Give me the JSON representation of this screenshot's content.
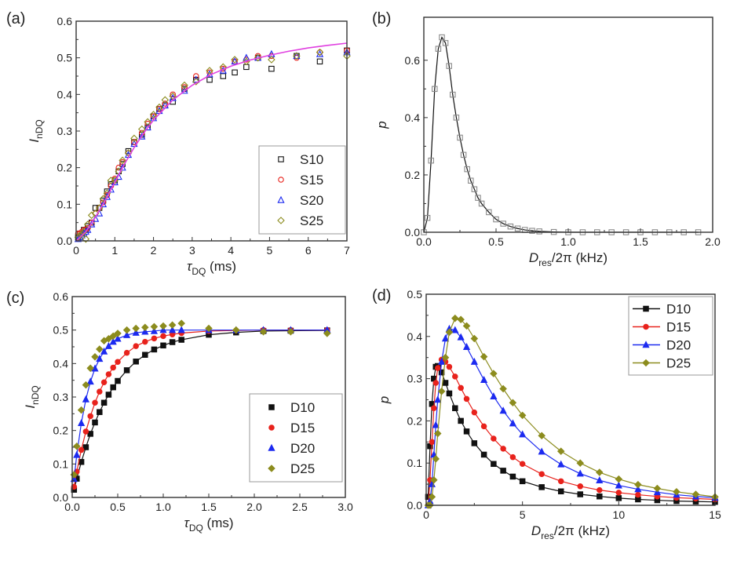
{
  "colors": {
    "black": "#111111",
    "red": "#e8221c",
    "blue": "#1c2af0",
    "olive": "#8c8c1e",
    "magenta": "#e040e0",
    "gray": "#8a8a8a"
  },
  "chart_data": [
    {
      "panel": "(a)",
      "type": "scatter",
      "xlabel": {
        "main": "τ",
        "sub": "DQ",
        "rest": " (ms)"
      },
      "ylabel": {
        "main": "I",
        "sub": "nDQ"
      },
      "xlim": [
        0,
        7
      ],
      "ylim": [
        0,
        0.6
      ],
      "xticks": [
        0,
        1,
        2,
        3,
        4,
        5,
        6,
        7
      ],
      "xtick_labels": [
        "0",
        "1",
        "2",
        "3",
        "4",
        "5",
        "6",
        "7"
      ],
      "yticks": [
        0,
        0.1,
        0.2,
        0.3,
        0.4,
        0.5,
        0.6
      ],
      "ytick_labels": [
        "0.0",
        "0.1",
        "0.2",
        "0.3",
        "0.4",
        "0.5",
        "0.6"
      ],
      "legend": "bottom-right",
      "grid": false,
      "x": [
        0.05,
        0.1,
        0.15,
        0.2,
        0.25,
        0.3,
        0.4,
        0.5,
        0.6,
        0.7,
        0.8,
        0.9,
        1.0,
        1.1,
        1.2,
        1.35,
        1.5,
        1.7,
        1.85,
        2.0,
        2.15,
        2.3,
        2.5,
        2.8,
        3.1,
        3.45,
        3.8,
        4.1,
        4.4,
        4.7,
        5.05,
        5.7,
        6.3,
        7.0
      ],
      "series": [
        {
          "name": "S10",
          "color": "black",
          "marker": "square",
          "filled": false,
          "line": false,
          "values": [
            0.01,
            0.02,
            0.02,
            0.03,
            0.03,
            0.04,
            0.05,
            0.09,
            0.09,
            0.11,
            0.135,
            0.155,
            0.165,
            0.19,
            0.21,
            0.245,
            0.27,
            0.29,
            0.31,
            0.34,
            0.36,
            0.37,
            0.38,
            0.415,
            0.44,
            0.44,
            0.45,
            0.46,
            0.475,
            0.5,
            0.47,
            0.505,
            0.49,
            0.52
          ]
        },
        {
          "name": "S15",
          "color": "red",
          "marker": "circle",
          "filled": false,
          "line": false,
          "values": [
            0.02,
            0.02,
            0.025,
            0.03,
            0.03,
            0.035,
            0.05,
            0.075,
            0.09,
            0.105,
            0.125,
            0.15,
            0.17,
            0.2,
            0.215,
            0.24,
            0.27,
            0.295,
            0.32,
            0.34,
            0.36,
            0.375,
            0.4,
            0.42,
            0.45,
            0.46,
            0.47,
            0.49,
            0.495,
            0.505,
            0.505,
            0.5,
            0.515,
            0.52
          ]
        },
        {
          "name": "S20",
          "color": "blue",
          "marker": "triangle",
          "filled": false,
          "line": false,
          "values": [
            0.005,
            0.01,
            0.015,
            0.02,
            0.025,
            0.03,
            0.045,
            0.06,
            0.075,
            0.1,
            0.12,
            0.14,
            0.16,
            0.175,
            0.2,
            0.235,
            0.265,
            0.285,
            0.31,
            0.335,
            0.355,
            0.37,
            0.39,
            0.41,
            0.44,
            0.455,
            0.465,
            0.49,
            0.5,
            0.5,
            0.51,
            0.505,
            0.51,
            0.515
          ]
        },
        {
          "name": "S25",
          "color": "olive",
          "marker": "diamond",
          "filled": false,
          "line": false,
          "values": [
            0.01,
            0.015,
            0.02,
            0.025,
            0.005,
            0.045,
            0.07,
            0.075,
            0.09,
            0.115,
            0.13,
            0.165,
            0.165,
            0.19,
            0.22,
            0.24,
            0.28,
            0.305,
            0.325,
            0.345,
            0.365,
            0.385,
            0.395,
            0.425,
            0.435,
            0.465,
            0.475,
            0.495,
            0.49,
            0.5,
            0.495,
            0.505,
            0.515,
            0.505
          ]
        },
        {
          "name": "",
          "color": "magenta",
          "marker": "none",
          "line": true,
          "legend": false,
          "x": [
            0,
            0.25,
            0.5,
            0.75,
            1,
            1.25,
            1.5,
            1.75,
            2,
            2.5,
            3,
            3.5,
            4,
            4.5,
            5,
            5.5,
            6,
            6.5,
            7
          ],
          "values": [
            0,
            0.025,
            0.065,
            0.11,
            0.16,
            0.21,
            0.255,
            0.295,
            0.33,
            0.385,
            0.425,
            0.455,
            0.477,
            0.494,
            0.507,
            0.518,
            0.527,
            0.534,
            0.54
          ]
        }
      ]
    },
    {
      "panel": "(b)",
      "type": "line",
      "xlabel": {
        "main": "D",
        "sub": "res",
        "rest": "/2π (kHz)"
      },
      "ylabel": {
        "main": "p",
        "sub": ""
      },
      "xlim": [
        0,
        2.0
      ],
      "ylim": [
        0,
        0.75
      ],
      "xticks": [
        0,
        0.5,
        1.0,
        1.5,
        2.0
      ],
      "xtick_labels": [
        "0.0",
        "0.5",
        "1.0",
        "1.5",
        "2.0"
      ],
      "yticks": [
        0,
        0.2,
        0.4,
        0.6
      ],
      "ytick_labels": [
        "0.0",
        "0.2",
        "0.4",
        "0.6"
      ],
      "legend": "none",
      "grid": false,
      "x": [
        0,
        0.025,
        0.05,
        0.075,
        0.1,
        0.125,
        0.15,
        0.175,
        0.2,
        0.225,
        0.25,
        0.275,
        0.3,
        0.325,
        0.35,
        0.375,
        0.4,
        0.45,
        0.5,
        0.55,
        0.6,
        0.65,
        0.7,
        0.75,
        0.8,
        0.9,
        1.0,
        1.1,
        1.2,
        1.3,
        1.4,
        1.5,
        1.6,
        1.7,
        1.8,
        1.9
      ],
      "series": [
        {
          "name": "",
          "color": "gray",
          "line_color": "black",
          "marker": "square",
          "filled": false,
          "line": true,
          "legend": false,
          "values": [
            0,
            0.05,
            0.25,
            0.5,
            0.64,
            0.68,
            0.66,
            0.58,
            0.48,
            0.4,
            0.33,
            0.27,
            0.22,
            0.18,
            0.15,
            0.12,
            0.1,
            0.07,
            0.045,
            0.03,
            0.02,
            0.013,
            0.008,
            0.005,
            0.003,
            0.001,
            0,
            0,
            0,
            0,
            0,
            0,
            0,
            0,
            0,
            0
          ]
        }
      ]
    },
    {
      "panel": "(c)",
      "type": "scatter",
      "xlabel": {
        "main": "τ",
        "sub": "DQ",
        "rest": " (ms)"
      },
      "ylabel": {
        "main": "I",
        "sub": "nDQ"
      },
      "xlim": [
        0,
        3.0
      ],
      "ylim": [
        0,
        0.6
      ],
      "xticks": [
        0,
        0.5,
        1.0,
        1.5,
        2.0,
        2.5,
        3.0
      ],
      "xtick_labels": [
        "0.0",
        "0.5",
        "1.0",
        "1.5",
        "2.0",
        "2.5",
        "3.0"
      ],
      "yticks": [
        0,
        0.1,
        0.2,
        0.3,
        0.4,
        0.5,
        0.6
      ],
      "ytick_labels": [
        "0.0",
        "0.1",
        "0.2",
        "0.3",
        "0.4",
        "0.5",
        "0.6"
      ],
      "legend": "bottom-right",
      "grid": false,
      "x": [
        0.02,
        0.05,
        0.1,
        0.15,
        0.2,
        0.25,
        0.3,
        0.35,
        0.4,
        0.45,
        0.5,
        0.6,
        0.7,
        0.8,
        0.9,
        1.0,
        1.1,
        1.2,
        1.5,
        1.8,
        2.1,
        2.4,
        2.8
      ],
      "series": [
        {
          "name": "D10",
          "color": "black",
          "marker": "square",
          "filled": true,
          "line": true,
          "values": [
            0.023,
            0.056,
            0.106,
            0.15,
            0.19,
            0.224,
            0.255,
            0.283,
            0.307,
            0.329,
            0.348,
            0.38,
            0.406,
            0.426,
            0.442,
            0.454,
            0.464,
            0.471,
            0.486,
            0.493,
            0.497,
            0.498,
            0.499
          ]
        },
        {
          "name": "D15",
          "color": "red",
          "marker": "circle",
          "filled": true,
          "line": true,
          "values": [
            0.032,
            0.077,
            0.142,
            0.197,
            0.243,
            0.283,
            0.316,
            0.344,
            0.368,
            0.388,
            0.405,
            0.432,
            0.452,
            0.465,
            0.475,
            0.482,
            0.487,
            0.491,
            0.497,
            0.499,
            0.5,
            0.5,
            0.5
          ]
        },
        {
          "name": "D20",
          "color": "blue",
          "marker": "triangle",
          "filled": true,
          "line": true,
          "values": [
            0.055,
            0.127,
            0.222,
            0.293,
            0.346,
            0.385,
            0.414,
            0.436,
            0.452,
            0.465,
            0.474,
            0.485,
            0.492,
            0.495,
            0.497,
            0.5,
            0.5,
            0.5,
            0.5,
            0.5,
            0.5,
            0.5,
            0.5
          ]
        },
        {
          "name": "D25",
          "color": "olive",
          "marker": "diamond",
          "filled": true,
          "line": false,
          "values": [
            0.068,
            0.153,
            0.261,
            0.336,
            0.386,
            0.42,
            0.443,
            0.468,
            0.474,
            0.482,
            0.49,
            0.5,
            0.505,
            0.508,
            0.51,
            0.512,
            0.515,
            0.52,
            0.505,
            0.5,
            0.495,
            0.495,
            0.49
          ]
        }
      ]
    },
    {
      "panel": "(d)",
      "type": "line",
      "xlabel": {
        "main": "D",
        "sub": "res",
        "rest": "/2π (kHz)"
      },
      "ylabel": {
        "main": "p",
        "sub": ""
      },
      "xlim": [
        0,
        15
      ],
      "ylim": [
        0,
        0.5
      ],
      "xticks": [
        0,
        5,
        10,
        15
      ],
      "xtick_labels": [
        "0",
        "5",
        "10",
        "15"
      ],
      "yticks": [
        0,
        0.1,
        0.2,
        0.3,
        0.4,
        0.5
      ],
      "ytick_labels": [
        "0.0",
        "0.1",
        "0.2",
        "0.3",
        "0.4",
        "0.5"
      ],
      "legend": "top-right",
      "grid": false,
      "x": [
        0.1,
        0.2,
        0.3,
        0.4,
        0.5,
        0.6,
        0.8,
        1.0,
        1.2,
        1.5,
        1.8,
        2.1,
        2.5,
        3,
        3.5,
        4,
        4.5,
        5,
        6,
        7,
        8,
        9,
        10,
        11,
        12,
        13,
        14,
        15
      ],
      "series": [
        {
          "name": "D10",
          "color": "black",
          "marker": "square",
          "filled": true,
          "line": true,
          "values": [
            0.02,
            0.14,
            0.24,
            0.3,
            0.328,
            0.33,
            0.315,
            0.29,
            0.265,
            0.23,
            0.2,
            0.175,
            0.147,
            0.12,
            0.098,
            0.082,
            0.068,
            0.057,
            0.043,
            0.033,
            0.026,
            0.021,
            0.017,
            0.014,
            0.012,
            0.01,
            0.009,
            0.008
          ]
        },
        {
          "name": "D15",
          "color": "red",
          "marker": "circle",
          "filled": true,
          "line": true,
          "values": [
            0,
            0.06,
            0.15,
            0.23,
            0.29,
            0.325,
            0.345,
            0.34,
            0.328,
            0.305,
            0.278,
            0.252,
            0.22,
            0.187,
            0.158,
            0.134,
            0.114,
            0.098,
            0.074,
            0.057,
            0.045,
            0.036,
            0.03,
            0.025,
            0.021,
            0.018,
            0.016,
            0.014
          ]
        },
        {
          "name": "D20",
          "color": "blue",
          "marker": "triangle",
          "filled": true,
          "line": true,
          "values": [
            0,
            0.01,
            0.05,
            0.12,
            0.19,
            0.25,
            0.34,
            0.395,
            0.418,
            0.415,
            0.398,
            0.375,
            0.34,
            0.297,
            0.258,
            0.224,
            0.194,
            0.168,
            0.127,
            0.097,
            0.075,
            0.059,
            0.047,
            0.038,
            0.031,
            0.025,
            0.021,
            0.018
          ]
        },
        {
          "name": "D25",
          "color": "olive",
          "marker": "diamond",
          "filled": true,
          "line": true,
          "values": [
            0,
            0,
            0.02,
            0.06,
            0.11,
            0.17,
            0.27,
            0.35,
            0.41,
            0.443,
            0.44,
            0.425,
            0.395,
            0.352,
            0.312,
            0.276,
            0.243,
            0.213,
            0.165,
            0.128,
            0.1,
            0.078,
            0.062,
            0.049,
            0.04,
            0.032,
            0.026,
            0.02
          ]
        }
      ]
    }
  ]
}
